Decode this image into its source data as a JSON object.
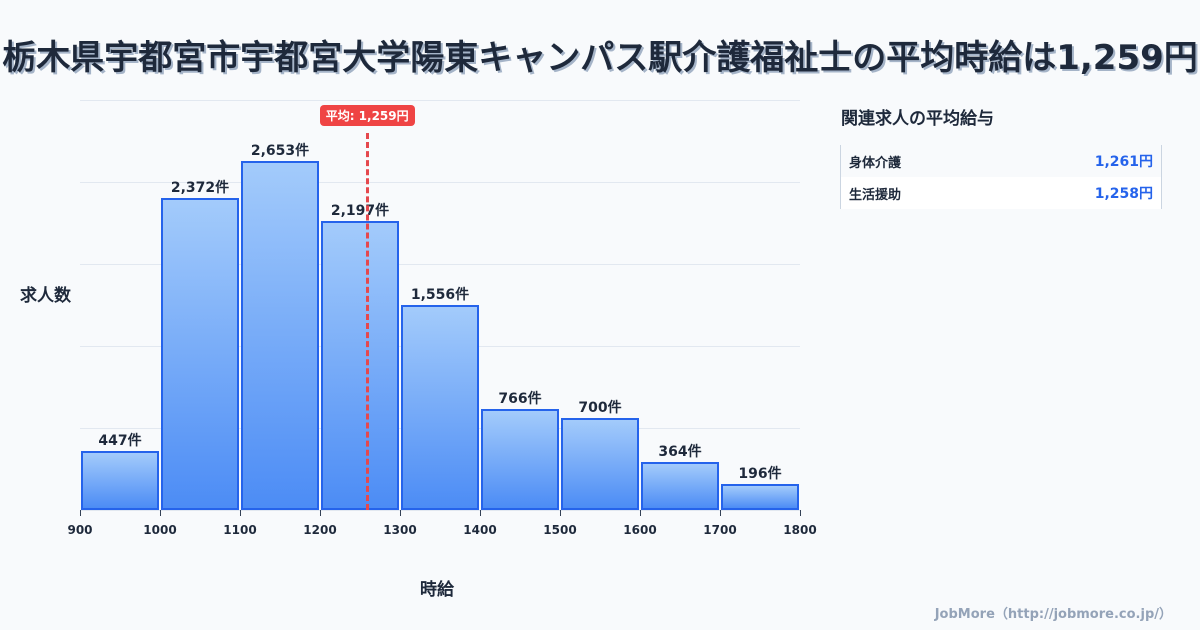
{
  "title": "栃木県宇都宮市宇都宮大学陽東キャンパス駅介護福祉士の平均時給は1,259円",
  "chart_data": {
    "type": "bar",
    "title": "栃木県宇都宮市宇都宮大学陽東キャンパス駅介護福祉士の平均時給は1,259円",
    "xlabel": "時給",
    "ylabel": "求人数",
    "bins": [
      900,
      1000,
      1100,
      1200,
      1300,
      1400,
      1500,
      1600,
      1700,
      1800
    ],
    "categories": [
      "900-1000",
      "1000-1100",
      "1100-1200",
      "1200-1300",
      "1300-1400",
      "1400-1500",
      "1500-1600",
      "1600-1700",
      "1700-1800"
    ],
    "values": [
      447,
      2372,
      2653,
      2197,
      1556,
      766,
      700,
      364,
      196
    ],
    "value_labels": [
      "447件",
      "2,372件",
      "2,653件",
      "2,197件",
      "1,556件",
      "766件",
      "700件",
      "364件",
      "196件"
    ],
    "x_tick_labels": [
      "900",
      "1000",
      "1100",
      "1200",
      "1300",
      "1400",
      "1500",
      "1600",
      "1700",
      "1800"
    ],
    "xlim": [
      900,
      1800
    ],
    "grid": true,
    "mean": 1259,
    "mean_label": "平均: 1,259円",
    "colors": {
      "bar_border": "#2563eb",
      "bar_top": "#a3cbfb",
      "bar_bottom": "#4c8cf5",
      "mean_line": "#ef4444"
    }
  },
  "side_panel": {
    "title": "関連求人の平均給与",
    "rows": [
      {
        "name": "身体介護",
        "value": "1,261円"
      },
      {
        "name": "生活援助",
        "value": "1,258円"
      }
    ]
  },
  "footer": "JobMore（http://jobmore.co.jp/）"
}
